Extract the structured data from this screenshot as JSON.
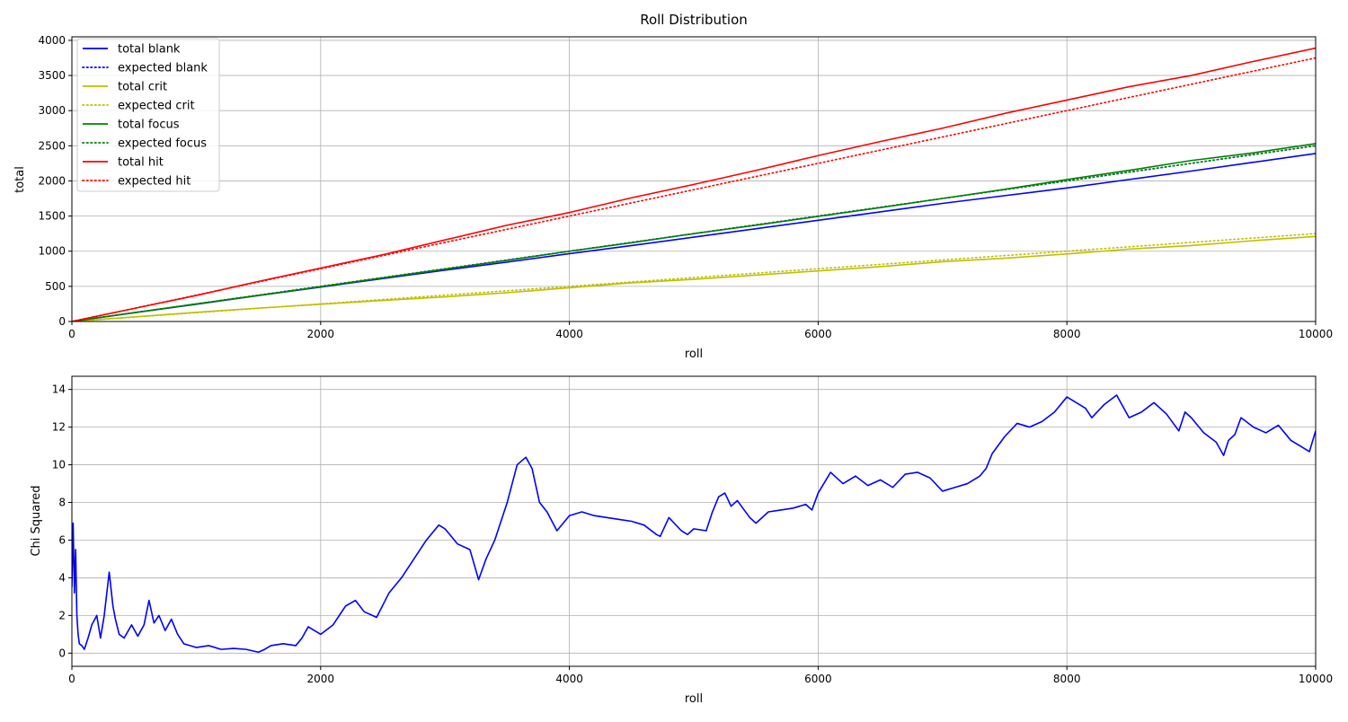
{
  "chart_data": [
    {
      "type": "line",
      "title": "Roll Distribution",
      "xlabel": "roll",
      "ylabel": "total",
      "xlim": [
        0,
        10000
      ],
      "ylim": [
        0,
        4050
      ],
      "x_ticks": [
        0,
        2000,
        4000,
        6000,
        8000,
        10000
      ],
      "y_ticks": [
        0,
        500,
        1000,
        1500,
        2000,
        2500,
        3000,
        3500,
        4000
      ],
      "grid": true,
      "legend_position": "upper left",
      "series": [
        {
          "name": "total blank",
          "color": "#0000ff",
          "style": "solid",
          "x": [
            0,
            500,
            1000,
            1500,
            2000,
            2500,
            3000,
            3500,
            4000,
            4500,
            5000,
            5500,
            6000,
            6500,
            7000,
            7500,
            8000,
            8500,
            9000,
            9500,
            10000
          ],
          "y": [
            0,
            125,
            245,
            370,
            490,
            610,
            730,
            845,
            965,
            1080,
            1200,
            1320,
            1440,
            1560,
            1680,
            1790,
            1900,
            2020,
            2140,
            2265,
            2390
          ]
        },
        {
          "name": "expected blank",
          "color": "#0000ff",
          "style": "dotted",
          "x": [
            0,
            10000
          ],
          "y": [
            0,
            2500
          ]
        },
        {
          "name": "total crit",
          "color": "#bfbf00",
          "style": "solid",
          "x": [
            0,
            500,
            1000,
            1500,
            2000,
            2500,
            3000,
            3500,
            4000,
            4500,
            5000,
            5500,
            6000,
            6500,
            7000,
            7500,
            8000,
            8500,
            9000,
            9500,
            10000
          ],
          "y": [
            0,
            65,
            130,
            190,
            245,
            300,
            350,
            410,
            480,
            550,
            600,
            660,
            720,
            780,
            850,
            900,
            960,
            1030,
            1080,
            1150,
            1210
          ]
        },
        {
          "name": "expected crit",
          "color": "#bfbf00",
          "style": "dotted",
          "x": [
            0,
            10000
          ],
          "y": [
            0,
            1250
          ]
        },
        {
          "name": "total focus",
          "color": "#008000",
          "style": "solid",
          "x": [
            0,
            500,
            1000,
            1500,
            2000,
            2500,
            3000,
            3500,
            4000,
            4500,
            5000,
            5500,
            6000,
            6500,
            7000,
            7500,
            8000,
            8500,
            9000,
            9500,
            10000
          ],
          "y": [
            0,
            125,
            250,
            370,
            495,
            620,
            745,
            870,
            1000,
            1120,
            1250,
            1370,
            1495,
            1620,
            1750,
            1880,
            2020,
            2150,
            2290,
            2400,
            2530
          ]
        },
        {
          "name": "expected focus",
          "color": "#008000",
          "style": "dotted",
          "x": [
            0,
            10000
          ],
          "y": [
            0,
            2500
          ]
        },
        {
          "name": "total hit",
          "color": "#ff0000",
          "style": "solid",
          "x": [
            0,
            500,
            1000,
            1500,
            2000,
            2500,
            3000,
            3500,
            4000,
            4500,
            5000,
            5500,
            6000,
            6500,
            7000,
            7500,
            8000,
            8500,
            9000,
            9500,
            10000
          ],
          "y": [
            0,
            185,
            370,
            570,
            760,
            950,
            1160,
            1370,
            1550,
            1760,
            1950,
            2150,
            2360,
            2560,
            2750,
            2960,
            3150,
            3340,
            3500,
            3700,
            3890
          ]
        },
        {
          "name": "expected hit",
          "color": "#ff0000",
          "style": "dotted",
          "x": [
            0,
            10000
          ],
          "y": [
            0,
            3750
          ]
        }
      ]
    },
    {
      "type": "line",
      "title": "",
      "xlabel": "roll",
      "ylabel": "Chi Squared",
      "xlim": [
        0,
        10000
      ],
      "ylim": [
        -0.7,
        14.7
      ],
      "x_ticks": [
        0,
        2000,
        4000,
        6000,
        8000,
        10000
      ],
      "y_ticks": [
        0,
        2,
        4,
        6,
        8,
        10,
        12,
        14
      ],
      "grid": true,
      "series": [
        {
          "color": "#0000ff",
          "style": "solid",
          "x": [
            0,
            10,
            20,
            30,
            40,
            50,
            60,
            80,
            100,
            130,
            160,
            200,
            230,
            260,
            300,
            330,
            350,
            380,
            420,
            480,
            530,
            580,
            620,
            660,
            700,
            750,
            800,
            850,
            900,
            1000,
            1100,
            1200,
            1300,
            1400,
            1500,
            1550,
            1600,
            1700,
            1800,
            1850,
            1900,
            2000,
            2100,
            2200,
            2280,
            2350,
            2450,
            2550,
            2650,
            2750,
            2850,
            2950,
            3000,
            3100,
            3200,
            3270,
            3330,
            3400,
            3500,
            3580,
            3650,
            3700,
            3760,
            3820,
            3900,
            4000,
            4100,
            4200,
            4300,
            4400,
            4500,
            4600,
            4700,
            4730,
            4800,
            4900,
            4950,
            5000,
            5100,
            5150,
            5200,
            5250,
            5300,
            5350,
            5450,
            5500,
            5600,
            5700,
            5800,
            5900,
            5950,
            6000,
            6100,
            6200,
            6300,
            6400,
            6500,
            6600,
            6700,
            6800,
            6900,
            7000,
            7100,
            7200,
            7300,
            7350,
            7400,
            7500,
            7600,
            7700,
            7800,
            7900,
            8000,
            8100,
            8150,
            8200,
            8300,
            8400,
            8500,
            8600,
            8700,
            8800,
            8900,
            8950,
            9000,
            9100,
            9200,
            9260,
            9300,
            9350,
            9400,
            9500,
            9600,
            9700,
            9800,
            9900,
            9950,
            10000
          ],
          "y": [
            3.5,
            6.9,
            3.2,
            5.5,
            2.0,
            1.0,
            0.5,
            0.4,
            0.2,
            0.8,
            1.5,
            2.0,
            0.8,
            2.0,
            4.3,
            2.5,
            1.8,
            1.0,
            0.8,
            1.5,
            0.9,
            1.5,
            2.8,
            1.6,
            2.0,
            1.2,
            1.8,
            1.0,
            0.5,
            0.3,
            0.4,
            0.2,
            0.25,
            0.2,
            0.05,
            0.2,
            0.4,
            0.5,
            0.4,
            0.8,
            1.4,
            1.0,
            1.5,
            2.5,
            2.8,
            2.2,
            1.9,
            3.2,
            4.0,
            5.0,
            6.0,
            6.8,
            6.6,
            5.8,
            5.5,
            3.9,
            5.0,
            6.0,
            8.0,
            10.0,
            10.4,
            9.8,
            8.0,
            7.5,
            6.5,
            7.3,
            7.5,
            7.3,
            7.2,
            7.1,
            7.0,
            6.8,
            6.3,
            6.2,
            7.2,
            6.5,
            6.3,
            6.6,
            6.5,
            7.5,
            8.3,
            8.5,
            7.8,
            8.1,
            7.2,
            6.9,
            7.5,
            7.6,
            7.7,
            7.9,
            7.6,
            8.5,
            9.6,
            9.0,
            9.4,
            8.9,
            9.2,
            8.8,
            9.5,
            9.6,
            9.3,
            8.6,
            8.8,
            9.0,
            9.4,
            9.8,
            10.6,
            11.5,
            12.2,
            12.0,
            12.3,
            12.8,
            13.6,
            13.2,
            13.0,
            12.5,
            13.2,
            13.7,
            12.5,
            12.8,
            13.3,
            12.7,
            11.8,
            12.8,
            12.5,
            11.7,
            11.2,
            10.5,
            11.3,
            11.6,
            12.5,
            12.0,
            11.7,
            12.1,
            11.3,
            10.9,
            10.7,
            11.8
          ]
        }
      ]
    }
  ]
}
